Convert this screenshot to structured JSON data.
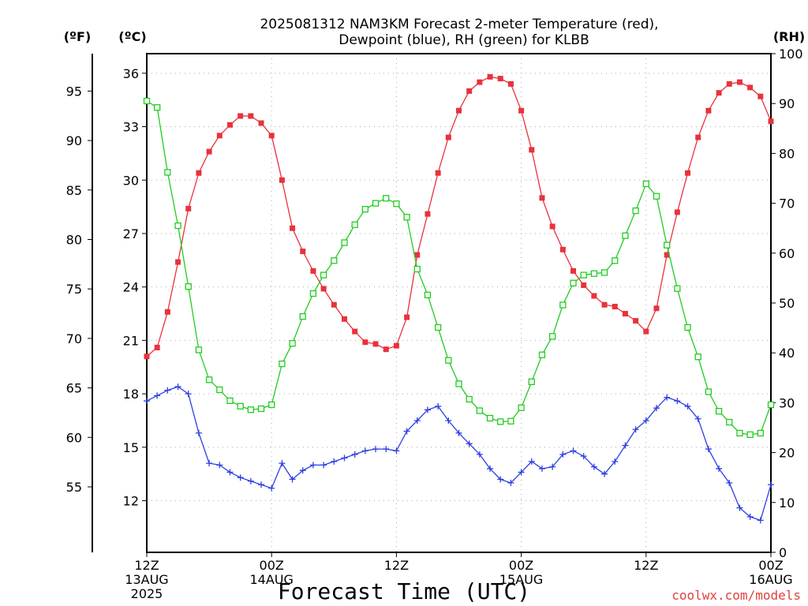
{
  "chart_data": {
    "type": "line",
    "title_line1": "2025081312 NAM3KM Forecast 2-meter Temperature (red),",
    "title_line2": "Dewpoint (blue), RH (green) for KLBB",
    "xlabel": "Forecast Time (UTC)",
    "credit": "coolwx.com/models",
    "y_units": {
      "f": "(ºF)",
      "c": "(ºC)",
      "rh": "(RH)"
    },
    "x_hours_range": [
      0,
      60
    ],
    "xtick_hours": [
      0,
      12,
      24,
      36,
      48,
      60
    ],
    "x_ticks": [
      {
        "line1": "12Z",
        "line2": "13AUG",
        "line3": "2025"
      },
      {
        "line1": "00Z",
        "line2": "14AUG",
        "line3": ""
      },
      {
        "line1": "12Z",
        "line2": "",
        "line3": ""
      },
      {
        "line1": "00Z",
        "line2": "15AUG",
        "line3": ""
      },
      {
        "line1": "12Z",
        "line2": "",
        "line3": ""
      },
      {
        "line1": "00Z",
        "line2": "16AUG",
        "line3": ""
      }
    ],
    "ylim_c": [
      9.1,
      37.1
    ],
    "yticks_c": [
      12,
      15,
      18,
      21,
      24,
      27,
      30,
      33,
      36
    ],
    "yticks_f": [
      55,
      60,
      65,
      70,
      75,
      80,
      85,
      90,
      95
    ],
    "ylim_rh": [
      0,
      100
    ],
    "yticks_rh": [
      0,
      10,
      20,
      30,
      40,
      50,
      60,
      70,
      80,
      90,
      100
    ],
    "grid": true,
    "series": [
      {
        "name": "Temperature",
        "color": "#e8323c",
        "marker": "filled-square",
        "axis": "c",
        "x": [
          0,
          1,
          2,
          3,
          4,
          5,
          6,
          7,
          8,
          9,
          10,
          11,
          12,
          13,
          14,
          15,
          16,
          17,
          18,
          19,
          20,
          21,
          22,
          23,
          24,
          25,
          26,
          27,
          28,
          29,
          30,
          31,
          32,
          33,
          34,
          35,
          36,
          37,
          38,
          39,
          40,
          41,
          42,
          43,
          44,
          45,
          46,
          47,
          48,
          49,
          50,
          51,
          52,
          53,
          54,
          55,
          56,
          57,
          58,
          59,
          60
        ],
        "values": [
          20.1,
          20.6,
          22.6,
          25.4,
          28.4,
          30.4,
          31.6,
          32.5,
          33.1,
          33.6,
          33.6,
          33.2,
          32.5,
          30.0,
          27.3,
          26.0,
          24.9,
          23.9,
          23.0,
          22.2,
          21.5,
          20.9,
          20.8,
          20.5,
          20.7,
          22.3,
          25.8,
          28.1,
          30.4,
          32.4,
          33.9,
          35.0,
          35.5,
          35.8,
          35.7,
          35.4,
          33.9,
          31.7,
          29.0,
          27.4,
          26.1,
          24.9,
          24.1,
          23.5,
          23.0,
          22.9,
          22.5,
          22.1,
          21.5,
          22.8,
          25.8,
          28.2,
          30.4,
          32.4,
          33.9,
          34.9,
          35.4,
          35.5,
          35.2,
          34.7,
          33.3
        ]
      },
      {
        "name": "Dewpoint",
        "color": "#2e3fe0",
        "marker": "plus",
        "axis": "c",
        "x": [
          0,
          1,
          2,
          3,
          4,
          5,
          6,
          7,
          8,
          9,
          10,
          11,
          12,
          13,
          14,
          15,
          16,
          17,
          18,
          19,
          20,
          21,
          22,
          23,
          24,
          25,
          26,
          27,
          28,
          29,
          30,
          31,
          32,
          33,
          34,
          35,
          36,
          37,
          38,
          39,
          40,
          41,
          42,
          43,
          44,
          45,
          46,
          47,
          48,
          49,
          50,
          51,
          52,
          53,
          54,
          55,
          56,
          57,
          58,
          59,
          60
        ],
        "values": [
          17.6,
          17.9,
          18.2,
          18.4,
          18.0,
          15.8,
          14.1,
          14.0,
          13.6,
          13.3,
          13.1,
          12.9,
          12.7,
          14.1,
          13.2,
          13.7,
          14.0,
          14.0,
          14.2,
          14.4,
          14.6,
          14.8,
          14.9,
          14.9,
          14.8,
          15.9,
          16.5,
          17.1,
          17.3,
          16.5,
          15.8,
          15.2,
          14.6,
          13.8,
          13.2,
          13.0,
          13.6,
          14.2,
          13.8,
          13.9,
          14.6,
          14.8,
          14.5,
          13.9,
          13.5,
          14.2,
          15.1,
          16.0,
          16.5,
          17.2,
          17.8,
          17.6,
          17.3,
          16.6,
          14.9,
          13.8,
          13.0,
          11.6,
          11.1,
          10.9,
          12.9
        ]
      },
      {
        "name": "RH",
        "color": "#22cc22",
        "marker": "open-square",
        "axis": "rh",
        "x": [
          0,
          1,
          2,
          3,
          4,
          5,
          6,
          7,
          8,
          9,
          10,
          11,
          12,
          13,
          14,
          15,
          16,
          17,
          18,
          19,
          20,
          21,
          22,
          23,
          24,
          25,
          26,
          27,
          28,
          29,
          30,
          31,
          32,
          33,
          34,
          35,
          36,
          37,
          38,
          39,
          40,
          41,
          42,
          43,
          44,
          45,
          46,
          47,
          48,
          49,
          50,
          51,
          52,
          53,
          54,
          55,
          56,
          57,
          58,
          59,
          60
        ],
        "values": [
          90.5,
          89.2,
          76.2,
          65.5,
          53.3,
          40.6,
          34.6,
          32.6,
          30.4,
          29.3,
          28.6,
          28.8,
          29.6,
          37.8,
          41.9,
          47.3,
          51.9,
          55.6,
          58.5,
          62.1,
          65.7,
          68.8,
          70.0,
          71.0,
          69.9,
          67.2,
          56.8,
          51.6,
          45.1,
          38.5,
          33.8,
          30.7,
          28.4,
          26.9,
          26.2,
          26.3,
          29.0,
          34.2,
          39.6,
          43.3,
          49.6,
          54.0,
          55.6,
          55.9,
          56.1,
          58.5,
          63.5,
          68.5,
          73.9,
          71.4,
          61.6,
          52.9,
          45.1,
          39.2,
          32.2,
          28.3,
          26.1,
          23.9,
          23.6,
          23.9,
          29.6
        ]
      }
    ]
  }
}
